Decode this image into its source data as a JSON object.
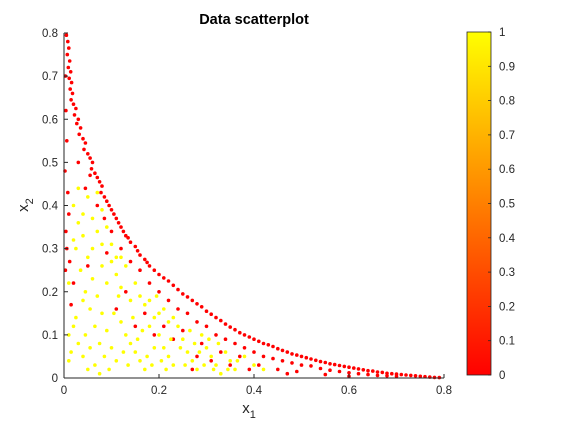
{
  "chart_data": {
    "type": "scatter",
    "title": "Data scatterplot",
    "xlabel": {
      "main": "x",
      "sub": "1"
    },
    "ylabel": {
      "main": "x",
      "sub": "2"
    },
    "xlim": [
      0,
      0.8
    ],
    "ylim": [
      0,
      0.8
    ],
    "xticks": [
      "0",
      "0.2",
      "0.4",
      "0.6",
      "0.8"
    ],
    "yticks": [
      "0",
      "0.1",
      "0.2",
      "0.3",
      "0.4",
      "0.5",
      "0.6",
      "0.7",
      "0.8"
    ],
    "grid": false,
    "colorbar": {
      "colormap": "autumn",
      "low_color": "#ff0000",
      "high_color": "#ffff00",
      "range": [
        0,
        1
      ],
      "ticks": [
        "0",
        "0.1",
        "0.2",
        "0.3",
        "0.4",
        "0.5",
        "0.6",
        "0.7",
        "0.8",
        "0.9",
        "1"
      ]
    },
    "marker": "dot",
    "series": [
      {
        "color_value": 0,
        "points": [
          [
            0.005,
            0.795
          ],
          [
            0.008,
            0.78
          ],
          [
            0.01,
            0.765
          ],
          [
            0.007,
            0.75
          ],
          [
            0.012,
            0.735
          ],
          [
            0.009,
            0.72
          ],
          [
            0.014,
            0.71
          ],
          [
            0.011,
            0.695
          ],
          [
            0.016,
            0.685
          ],
          [
            0.013,
            0.67
          ],
          [
            0.018,
            0.66
          ],
          [
            0.015,
            0.645
          ],
          [
            0.02,
            0.635
          ],
          [
            0.025,
            0.625
          ],
          [
            0.022,
            0.61
          ],
          [
            0.03,
            0.6
          ],
          [
            0.027,
            0.59
          ],
          [
            0.035,
            0.58
          ],
          [
            0.032,
            0.565
          ],
          [
            0.04,
            0.555
          ],
          [
            0.045,
            0.545
          ],
          [
            0.042,
            0.53
          ],
          [
            0.05,
            0.52
          ],
          [
            0.055,
            0.51
          ],
          [
            0.06,
            0.5
          ],
          [
            0.058,
            0.485
          ],
          [
            0.065,
            0.475
          ],
          [
            0.07,
            0.465
          ],
          [
            0.075,
            0.455
          ],
          [
            0.08,
            0.445
          ],
          [
            0.078,
            0.43
          ],
          [
            0.085,
            0.42
          ],
          [
            0.09,
            0.41
          ],
          [
            0.095,
            0.4
          ],
          [
            0.1,
            0.39
          ],
          [
            0.105,
            0.38
          ],
          [
            0.11,
            0.37
          ],
          [
            0.115,
            0.36
          ],
          [
            0.12,
            0.35
          ],
          [
            0.125,
            0.34
          ],
          [
            0.13,
            0.33
          ],
          [
            0.135,
            0.325
          ],
          [
            0.14,
            0.315
          ],
          [
            0.15,
            0.305
          ],
          [
            0.155,
            0.295
          ],
          [
            0.16,
            0.285
          ],
          [
            0.17,
            0.275
          ],
          [
            0.175,
            0.268
          ],
          [
            0.18,
            0.26
          ],
          [
            0.19,
            0.25
          ],
          [
            0.2,
            0.24
          ],
          [
            0.21,
            0.232
          ],
          [
            0.22,
            0.225
          ],
          [
            0.23,
            0.215
          ],
          [
            0.24,
            0.205
          ],
          [
            0.25,
            0.195
          ],
          [
            0.26,
            0.188
          ],
          [
            0.27,
            0.18
          ],
          [
            0.28,
            0.172
          ],
          [
            0.29,
            0.165
          ],
          [
            0.3,
            0.155
          ],
          [
            0.31,
            0.148
          ],
          [
            0.32,
            0.14
          ],
          [
            0.33,
            0.133
          ],
          [
            0.34,
            0.125
          ],
          [
            0.35,
            0.118
          ],
          [
            0.36,
            0.112
          ],
          [
            0.37,
            0.105
          ],
          [
            0.38,
            0.1
          ],
          [
            0.39,
            0.095
          ],
          [
            0.4,
            0.09
          ],
          [
            0.41,
            0.085
          ],
          [
            0.42,
            0.08
          ],
          [
            0.43,
            0.077
          ],
          [
            0.44,
            0.073
          ],
          [
            0.45,
            0.068
          ],
          [
            0.46,
            0.064
          ],
          [
            0.47,
            0.06
          ],
          [
            0.48,
            0.056
          ],
          [
            0.49,
            0.053
          ],
          [
            0.5,
            0.05
          ],
          [
            0.51,
            0.047
          ],
          [
            0.52,
            0.044
          ],
          [
            0.53,
            0.041
          ],
          [
            0.54,
            0.038
          ],
          [
            0.55,
            0.036
          ],
          [
            0.56,
            0.033
          ],
          [
            0.57,
            0.031
          ],
          [
            0.58,
            0.029
          ],
          [
            0.59,
            0.027
          ],
          [
            0.6,
            0.025
          ],
          [
            0.61,
            0.023
          ],
          [
            0.62,
            0.021
          ],
          [
            0.63,
            0.019
          ],
          [
            0.64,
            0.017
          ],
          [
            0.65,
            0.016
          ],
          [
            0.66,
            0.014
          ],
          [
            0.67,
            0.013
          ],
          [
            0.68,
            0.011
          ],
          [
            0.69,
            0.01
          ],
          [
            0.7,
            0.009
          ],
          [
            0.71,
            0.008
          ],
          [
            0.72,
            0.007
          ],
          [
            0.73,
            0.006
          ],
          [
            0.74,
            0.005
          ],
          [
            0.75,
            0.004
          ],
          [
            0.76,
            0.003
          ],
          [
            0.77,
            0.002
          ],
          [
            0.78,
            0.0015
          ],
          [
            0.79,
            0.001
          ],
          [
            0.003,
            0.7
          ],
          [
            0.004,
            0.62
          ],
          [
            0.006,
            0.55
          ],
          [
            0.002,
            0.48
          ],
          [
            0.008,
            0.43
          ],
          [
            0.01,
            0.38
          ],
          [
            0.004,
            0.34
          ],
          [
            0.006,
            0.3
          ],
          [
            0.012,
            0.27
          ],
          [
            0.003,
            0.25
          ],
          [
            0.02,
            0.22
          ],
          [
            0.015,
            0.17
          ],
          [
            0.03,
            0.5
          ],
          [
            0.045,
            0.44
          ],
          [
            0.055,
            0.47
          ],
          [
            0.07,
            0.4
          ],
          [
            0.085,
            0.37
          ],
          [
            0.1,
            0.34
          ],
          [
            0.12,
            0.3
          ],
          [
            0.14,
            0.27
          ],
          [
            0.16,
            0.25
          ],
          [
            0.18,
            0.22
          ],
          [
            0.2,
            0.2
          ],
          [
            0.22,
            0.18
          ],
          [
            0.24,
            0.16
          ],
          [
            0.26,
            0.15
          ],
          [
            0.28,
            0.13
          ],
          [
            0.3,
            0.12
          ],
          [
            0.32,
            0.1
          ],
          [
            0.34,
            0.09
          ],
          [
            0.36,
            0.08
          ],
          [
            0.38,
            0.07
          ],
          [
            0.4,
            0.06
          ],
          [
            0.42,
            0.05
          ],
          [
            0.44,
            0.045
          ],
          [
            0.46,
            0.04
          ],
          [
            0.48,
            0.035
          ],
          [
            0.5,
            0.03
          ],
          [
            0.52,
            0.028
          ],
          [
            0.54,
            0.022
          ],
          [
            0.56,
            0.018
          ],
          [
            0.58,
            0.015
          ],
          [
            0.6,
            0.012
          ],
          [
            0.62,
            0.01
          ],
          [
            0.64,
            0.008
          ],
          [
            0.66,
            0.006
          ],
          [
            0.68,
            0.005
          ],
          [
            0.7,
            0.004
          ],
          [
            0.05,
            0.26
          ],
          [
            0.09,
            0.29
          ],
          [
            0.13,
            0.2
          ],
          [
            0.17,
            0.15
          ],
          [
            0.21,
            0.12
          ],
          [
            0.25,
            0.11
          ],
          [
            0.29,
            0.08
          ],
          [
            0.33,
            0.06
          ],
          [
            0.37,
            0.05
          ],
          [
            0.41,
            0.03
          ],
          [
            0.45,
            0.02
          ],
          [
            0.49,
            0.015
          ],
          [
            0.35,
            0.03
          ],
          [
            0.28,
            0.05
          ],
          [
            0.39,
            0.02
          ],
          [
            0.47,
            0.01
          ],
          [
            0.55,
            0.008
          ],
          [
            0.6,
            0.004
          ],
          [
            0.27,
            0.02
          ],
          [
            0.31,
            0.04
          ],
          [
            0.23,
            0.09
          ],
          [
            0.19,
            0.1
          ],
          [
            0.15,
            0.12
          ],
          [
            0.11,
            0.16
          ]
        ]
      },
      {
        "color_value": 1,
        "points": [
          [
            0.02,
            0.4
          ],
          [
            0.03,
            0.36
          ],
          [
            0.04,
            0.33
          ],
          [
            0.025,
            0.3
          ],
          [
            0.05,
            0.28
          ],
          [
            0.035,
            0.25
          ],
          [
            0.06,
            0.23
          ],
          [
            0.045,
            0.2
          ],
          [
            0.07,
            0.19
          ],
          [
            0.055,
            0.16
          ],
          [
            0.08,
            0.15
          ],
          [
            0.065,
            0.12
          ],
          [
            0.09,
            0.11
          ],
          [
            0.075,
            0.08
          ],
          [
            0.1,
            0.07
          ],
          [
            0.085,
            0.05
          ],
          [
            0.11,
            0.04
          ],
          [
            0.095,
            0.02
          ],
          [
            0.12,
            0.13
          ],
          [
            0.13,
            0.1
          ],
          [
            0.14,
            0.08
          ],
          [
            0.15,
            0.06
          ],
          [
            0.16,
            0.04
          ],
          [
            0.17,
            0.02
          ],
          [
            0.18,
            0.18
          ],
          [
            0.19,
            0.14
          ],
          [
            0.2,
            0.1
          ],
          [
            0.21,
            0.07
          ],
          [
            0.22,
            0.05
          ],
          [
            0.23,
            0.03
          ],
          [
            0.24,
            0.12
          ],
          [
            0.25,
            0.09
          ],
          [
            0.26,
            0.06
          ],
          [
            0.27,
            0.04
          ],
          [
            0.28,
            0.02
          ],
          [
            0.29,
            0.1
          ],
          [
            0.3,
            0.07
          ],
          [
            0.31,
            0.05
          ],
          [
            0.32,
            0.03
          ],
          [
            0.33,
            0.01
          ],
          [
            0.34,
            0.06
          ],
          [
            0.35,
            0.04
          ],
          [
            0.36,
            0.02
          ],
          [
            0.38,
            0.05
          ],
          [
            0.4,
            0.03
          ],
          [
            0.42,
            0.02
          ],
          [
            0.02,
            0.12
          ],
          [
            0.03,
            0.08
          ],
          [
            0.04,
            0.05
          ],
          [
            0.05,
            0.02
          ],
          [
            0.01,
            0.1
          ],
          [
            0.015,
            0.06
          ],
          [
            0.04,
            0.18
          ],
          [
            0.06,
            0.3
          ],
          [
            0.07,
            0.34
          ],
          [
            0.08,
            0.26
          ],
          [
            0.09,
            0.22
          ],
          [
            0.1,
            0.27
          ],
          [
            0.11,
            0.24
          ],
          [
            0.12,
            0.21
          ],
          [
            0.13,
            0.26
          ],
          [
            0.14,
            0.18
          ],
          [
            0.15,
            0.22
          ],
          [
            0.16,
            0.19
          ],
          [
            0.17,
            0.17
          ],
          [
            0.18,
            0.12
          ],
          [
            0.19,
            0.07
          ],
          [
            0.2,
            0.15
          ],
          [
            0.21,
            0.16
          ],
          [
            0.22,
            0.13
          ],
          [
            0.23,
            0.14
          ],
          [
            0.06,
            0.37
          ],
          [
            0.05,
            0.42
          ],
          [
            0.07,
            0.43
          ],
          [
            0.08,
            0.39
          ],
          [
            0.03,
            0.44
          ],
          [
            0.02,
            0.32
          ],
          [
            0.01,
            0.22
          ],
          [
            0.025,
            0.14
          ],
          [
            0.045,
            0.1
          ],
          [
            0.055,
            0.07
          ],
          [
            0.065,
            0.03
          ],
          [
            0.075,
            0.01
          ],
          [
            0.105,
            0.15
          ],
          [
            0.115,
            0.19
          ],
          [
            0.125,
            0.06
          ],
          [
            0.135,
            0.03
          ],
          [
            0.145,
            0.14
          ],
          [
            0.155,
            0.09
          ],
          [
            0.165,
            0.11
          ],
          [
            0.175,
            0.05
          ],
          [
            0.185,
            0.03
          ],
          [
            0.195,
            0.19
          ],
          [
            0.205,
            0.04
          ],
          [
            0.215,
            0.02
          ],
          [
            0.225,
            0.09
          ],
          [
            0.245,
            0.07
          ],
          [
            0.255,
            0.03
          ],
          [
            0.265,
            0.11
          ],
          [
            0.275,
            0.08
          ],
          [
            0.285,
            0.06
          ],
          [
            0.295,
            0.03
          ],
          [
            0.305,
            0.09
          ],
          [
            0.315,
            0.02
          ],
          [
            0.325,
            0.08
          ],
          [
            0.345,
            0.02
          ],
          [
            0.365,
            0.04
          ],
          [
            0.08,
            0.31
          ],
          [
            0.09,
            0.35
          ],
          [
            0.1,
            0.31
          ],
          [
            0.11,
            0.28
          ],
          [
            0.04,
            0.38
          ],
          [
            0.12,
            0.28
          ],
          [
            0.01,
            0.04
          ]
        ]
      }
    ]
  }
}
